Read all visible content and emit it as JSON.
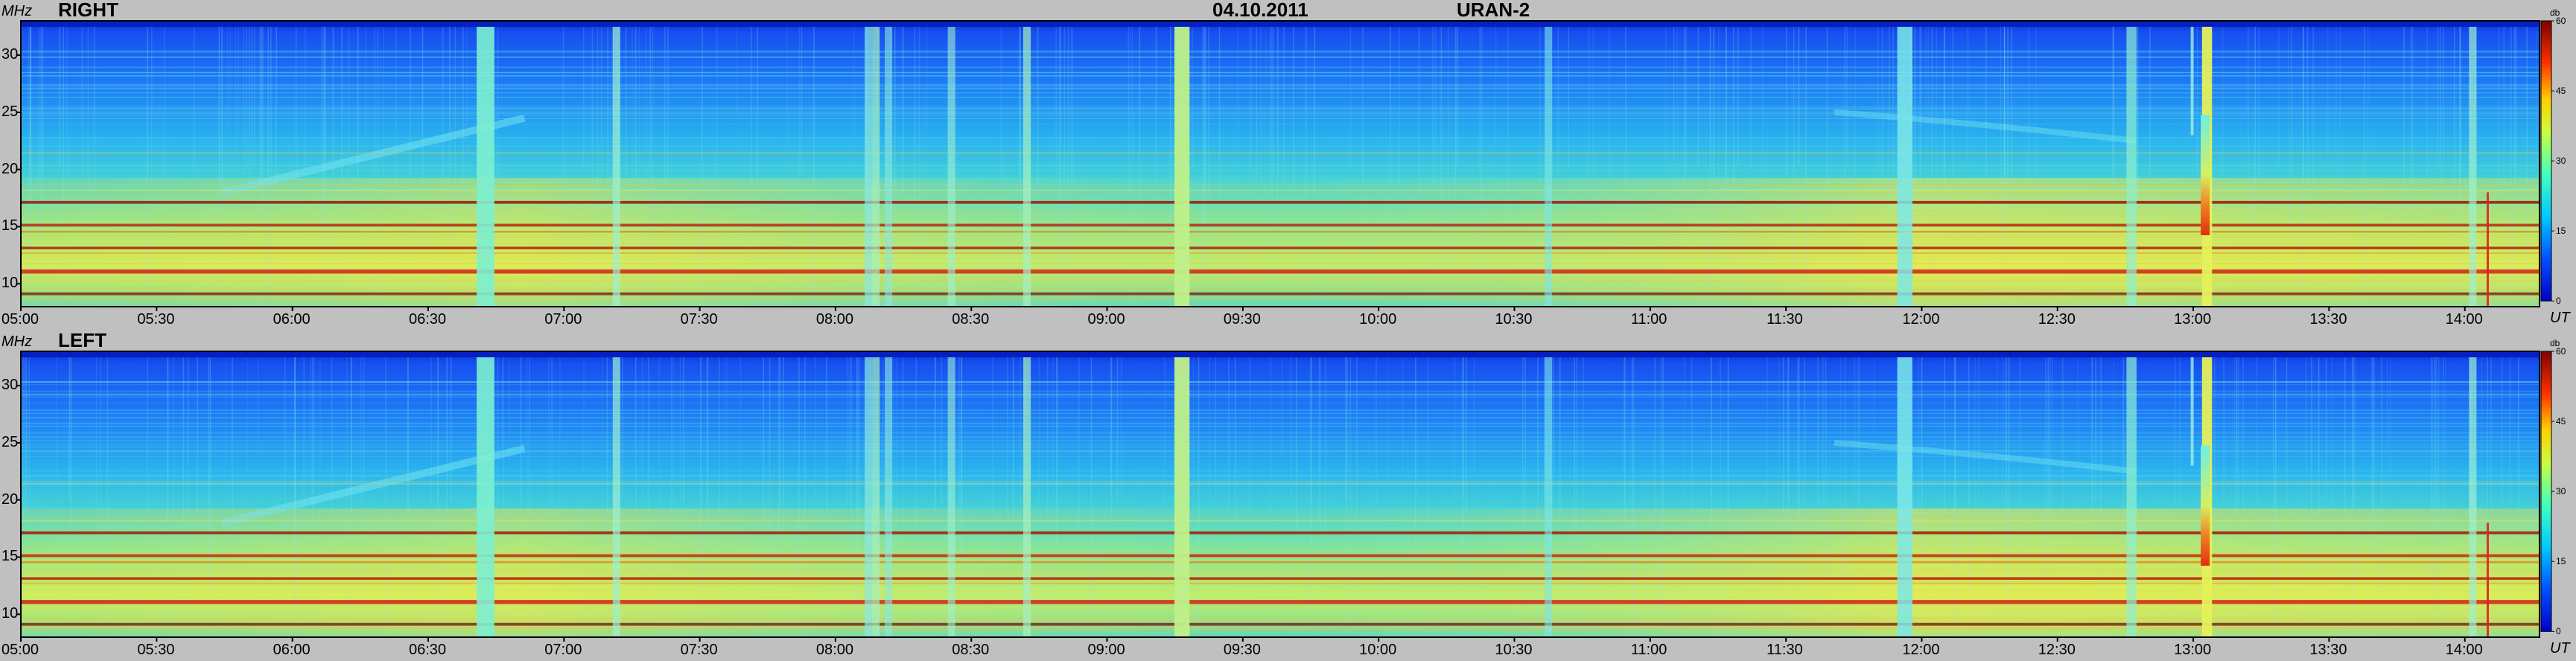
{
  "header": {
    "date": "04.10.2011",
    "instrument": "URAN-2"
  },
  "chart_data": [
    {
      "type": "heatmap",
      "title": "RIGHT",
      "ylabel": "MHz",
      "xlabel": "UT",
      "x_ticks": [
        "05:00",
        "05:30",
        "06:00",
        "06:30",
        "07:00",
        "07:30",
        "08:00",
        "08:30",
        "09:00",
        "09:30",
        "10:00",
        "10:30",
        "11:00",
        "11:30",
        "12:00",
        "12:30",
        "13:00",
        "13:30",
        "14:00"
      ],
      "y_ticks": [
        10,
        15,
        20,
        25,
        30
      ],
      "ylim": [
        8,
        33
      ],
      "colorbar": {
        "unit": "db",
        "ticks": [
          0,
          15,
          30,
          45,
          60
        ],
        "range": [
          0,
          60
        ]
      }
    },
    {
      "type": "heatmap",
      "title": "LEFT",
      "ylabel": "MHz",
      "xlabel": "UT",
      "x_ticks": [
        "05:00",
        "05:30",
        "06:00",
        "06:30",
        "07:00",
        "07:30",
        "08:00",
        "08:30",
        "09:00",
        "09:30",
        "10:00",
        "10:30",
        "11:00",
        "11:30",
        "12:00",
        "12:30",
        "13:00",
        "13:30",
        "14:00"
      ],
      "y_ticks": [
        10,
        15,
        20,
        25,
        30
      ],
      "ylim": [
        8,
        33
      ],
      "colorbar": {
        "unit": "db",
        "ticks": [
          0,
          15,
          30,
          45,
          60
        ],
        "range": [
          0,
          60
        ]
      }
    }
  ]
}
